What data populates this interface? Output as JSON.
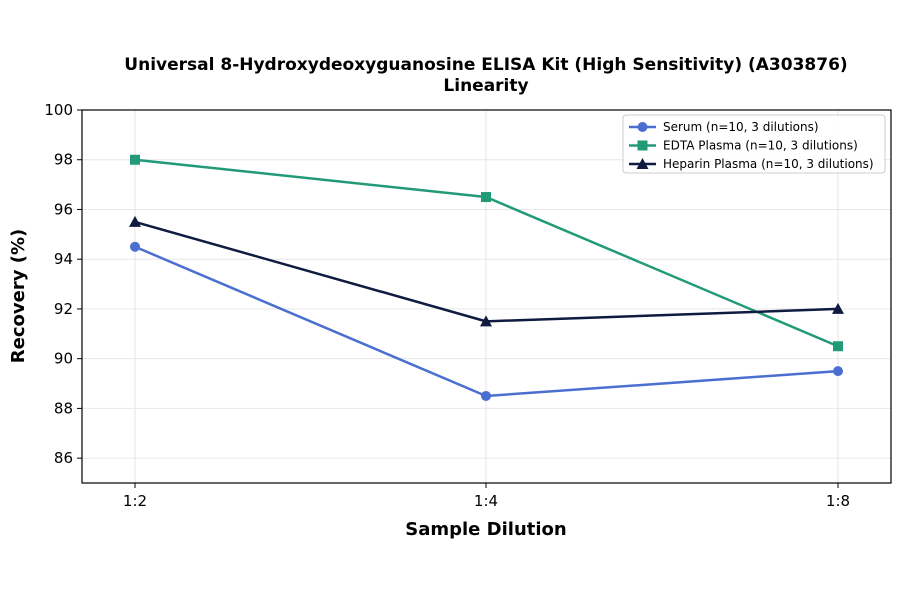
{
  "chart_data": {
    "type": "line",
    "title_line1": "Universal 8-Hydroxydeoxyguanosine ELISA Kit (High Sensitivity) (A303876)",
    "title_line2": "Linearity",
    "xlabel": "Sample Dilution",
    "ylabel": "Recovery (%)",
    "categories": [
      "1:2",
      "1:4",
      "1:8"
    ],
    "ylim": [
      85,
      100
    ],
    "yticks": [
      86,
      88,
      90,
      92,
      94,
      96,
      98,
      100
    ],
    "grid": true,
    "legend_position": "top-right",
    "series": [
      {
        "name": "Serum (n=10, 3 dilutions)",
        "values": [
          94.5,
          88.5,
          89.5
        ],
        "color": "#4a6fd0",
        "marker": "circle"
      },
      {
        "name": "EDTA Plasma (n=10, 3 dilutions)",
        "values": [
          98.0,
          96.5,
          90.5
        ],
        "color": "#229a78",
        "marker": "square"
      },
      {
        "name": "Heparin Plasma (n=10, 3 dilutions)",
        "values": [
          95.5,
          91.5,
          92.0
        ],
        "color": "#0f1b40",
        "marker": "triangle"
      }
    ]
  }
}
